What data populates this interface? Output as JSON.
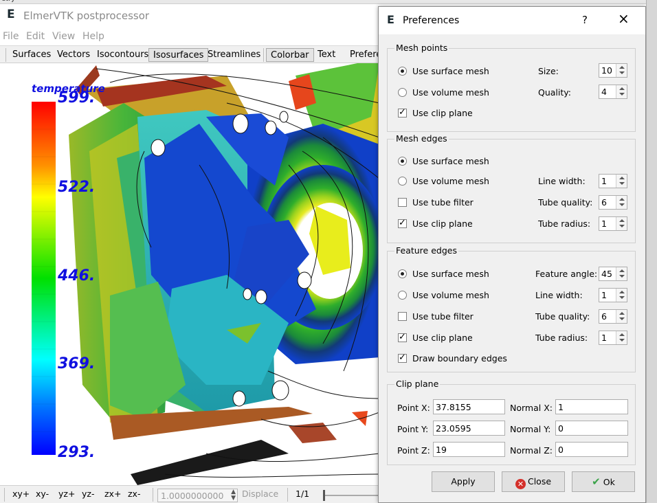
{
  "window": {
    "title": "ElmerVTK postprocessor",
    "peek_text": "etry"
  },
  "menu": [
    "File",
    "Edit",
    "View",
    "Help"
  ],
  "toolbar": {
    "surfaces": "Surfaces",
    "vectors": "Vectors",
    "isocontours": "Isocontours",
    "isosurfaces": "Isosurfaces",
    "streamlines": "Streamlines",
    "colorbar": "Colorbar",
    "text": "Text",
    "preferences": "Prefere"
  },
  "colorbar": {
    "title": "temperature",
    "labels": [
      "599.",
      "522.",
      "446.",
      "369.",
      "293."
    ]
  },
  "bottombar": {
    "views": [
      "xy+",
      "xy-",
      "yz+",
      "yz-",
      "zx+",
      "zx-"
    ],
    "zoom_value": "1.0000000000",
    "displace_label": "Displace",
    "page": "1/1"
  },
  "dialog": {
    "title": "Preferences",
    "help": "?",
    "mesh_points": {
      "title": "Mesh points",
      "surface": "Use surface mesh",
      "volume": "Use volume mesh",
      "clip": "Use clip plane",
      "size_label": "Size:",
      "size": "10",
      "quality_label": "Quality:",
      "quality": "4"
    },
    "mesh_edges": {
      "title": "Mesh edges",
      "surface": "Use surface mesh",
      "volume": "Use volume mesh",
      "tube": "Use tube filter",
      "clip": "Use clip plane",
      "line_width_label": "Line width:",
      "line_width": "1",
      "tube_quality_label": "Tube quality:",
      "tube_quality": "6",
      "tube_radius_label": "Tube radius:",
      "tube_radius": "1"
    },
    "feature_edges": {
      "title": "Feature edges",
      "surface": "Use surface mesh",
      "volume": "Use volume mesh",
      "tube": "Use tube filter",
      "clip": "Use clip plane",
      "boundary": "Draw boundary edges",
      "angle_label": "Feature angle:",
      "angle": "45",
      "line_width_label": "Line width:",
      "line_width": "1",
      "tube_quality_label": "Tube quality:",
      "tube_quality": "6",
      "tube_radius_label": "Tube radius:",
      "tube_radius": "1"
    },
    "clip_plane": {
      "title": "Clip plane",
      "px_label": "Point X:",
      "px": "37.8155",
      "py_label": "Point Y:",
      "py": "23.0595",
      "pz_label": "Point Z:",
      "pz": "19",
      "nx_label": "Normal X:",
      "nx": "1",
      "ny_label": "Normal Y:",
      "ny": "0",
      "nz_label": "Normal Z:",
      "nz": "0"
    },
    "buttons": {
      "apply": "Apply",
      "close": "Close",
      "ok": "Ok"
    }
  },
  "colors": {
    "accent_close": "#d4302a",
    "accent_ok": "#3ba34a",
    "colorbar_text": "#1010e0"
  }
}
